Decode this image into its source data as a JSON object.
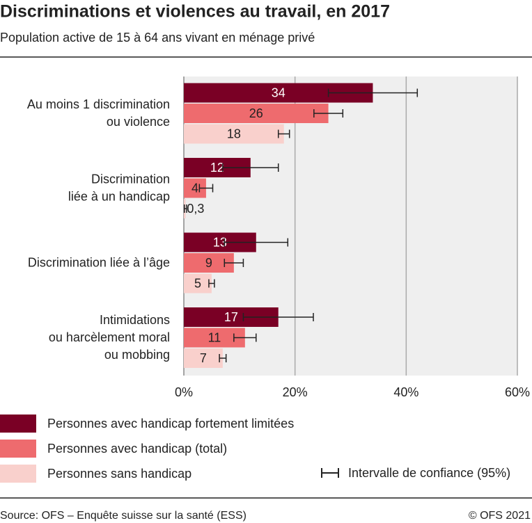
{
  "chart_data": {
    "type": "bar",
    "orientation": "horizontal",
    "title": "Discriminations et violences au travail, en 2017",
    "subtitle": "Population active de 15 à 64 ans vivant en ménage privé",
    "categories": [
      [
        "Au moins 1 discrimination",
        "ou violence"
      ],
      [
        "Discrimination",
        "liée à un handicap"
      ],
      [
        "Discrimination liée à l’âge"
      ],
      [
        "Intimidations",
        "ou harcèlement moral",
        "ou mobbing"
      ]
    ],
    "series": [
      {
        "name": "Personnes avec handicap fortement limitées",
        "color": "#7a0025",
        "label_color": "#ffffff",
        "values": [
          34,
          12,
          13,
          17
        ],
        "errors": [
          8,
          5,
          5.7,
          6.3
        ]
      },
      {
        "name": "Personnes avec handicap (total)",
        "color": "#ee6b6e",
        "label_color": "#222222",
        "values": [
          26,
          4,
          9,
          11
        ],
        "errors": [
          2.6,
          1.2,
          1.7,
          2
        ]
      },
      {
        "name": "Personnes sans handicap",
        "color": "#f9d0cc",
        "label_color": "#222222",
        "values": [
          18,
          0.3,
          5,
          7
        ],
        "value_labels": [
          "18",
          "0,3",
          "5",
          "7"
        ],
        "errors": [
          1,
          0.2,
          0.5,
          0.6
        ]
      }
    ],
    "error_bar_label": "Intervalle de confiance (95%)",
    "xlim": [
      0,
      60
    ],
    "xticks": [
      {
        "value": 0,
        "label": "0%"
      },
      {
        "value": 20,
        "label": "20%"
      },
      {
        "value": 40,
        "label": "40%"
      },
      {
        "value": 60,
        "label": "60%"
      }
    ],
    "grid": true,
    "source": "Source: OFS – Enquête suisse sur la santé (ESS)",
    "copyright": "© OFS 2021"
  }
}
